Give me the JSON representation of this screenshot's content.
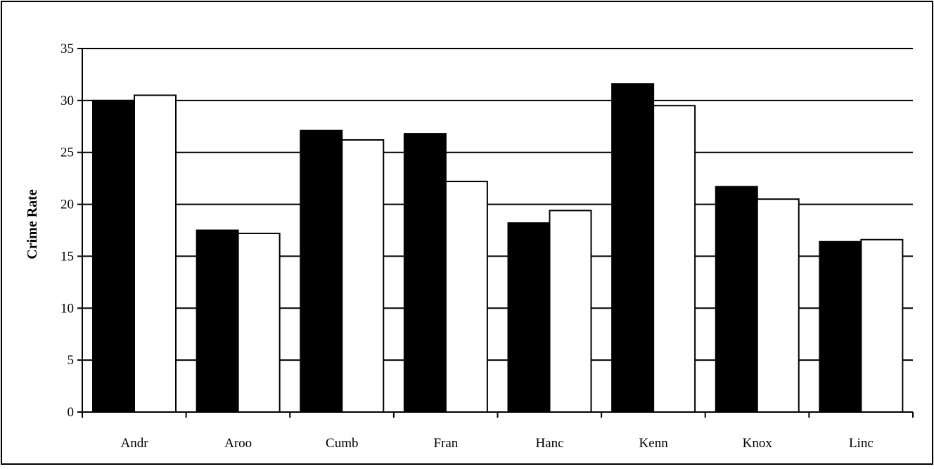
{
  "chart_data": {
    "type": "bar",
    "title": "",
    "xlabel": "",
    "ylabel": "Crime Rate",
    "categories": [
      "Andr",
      "Aroo",
      "Cumb",
      "Fran",
      "Hanc",
      "Kenn",
      "Knox",
      "Linc"
    ],
    "series": [
      {
        "color": "#000000",
        "values": [
          30.0,
          17.5,
          27.1,
          26.8,
          18.2,
          31.6,
          21.7,
          16.4
        ]
      },
      {
        "color": "#ffffff",
        "values": [
          30.5,
          17.2,
          26.2,
          22.2,
          19.4,
          29.5,
          20.5,
          16.6
        ]
      }
    ],
    "ylim": [
      0,
      35
    ],
    "yticks": [
      0,
      5,
      10,
      15,
      20,
      25,
      30,
      35
    ],
    "grid": true,
    "legend": "none"
  }
}
